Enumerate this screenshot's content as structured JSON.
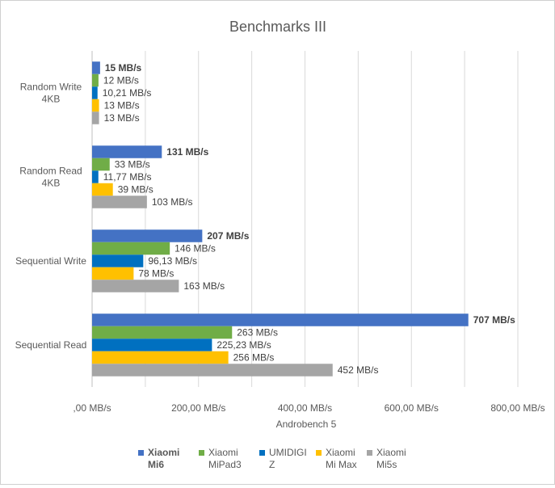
{
  "chart_data": {
    "type": "bar",
    "orientation": "horizontal",
    "title": "Benchmarks III",
    "xlabel": "Androbench 5",
    "ylabel": "",
    "xlim": [
      0,
      800
    ],
    "x_ticks": [
      0,
      200,
      400,
      600,
      800
    ],
    "x_tick_labels": [
      ",00 MB/s",
      "200,00 MB/s",
      "400,00 MB/s",
      "600,00 MB/s",
      "800,00 MB/s"
    ],
    "grid": true,
    "legend_position": "bottom",
    "categories": [
      [
        "Random Write",
        "4KB"
      ],
      [
        "Random Read",
        "4KB"
      ],
      [
        "Sequential Write"
      ],
      [
        "Sequential Read"
      ]
    ],
    "series": [
      {
        "name": [
          "Xiaomi",
          "Mi6"
        ],
        "color": "#4472c4",
        "bold": true,
        "values": [
          15,
          131,
          207,
          707
        ],
        "labels": [
          "15  MB/s",
          "131  MB/s",
          "207 MB/s",
          "707 MB/s"
        ]
      },
      {
        "name": [
          "Xiaomi",
          "MiPad3"
        ],
        "color": "#70ad47",
        "bold": false,
        "values": [
          12,
          33,
          146,
          263
        ],
        "labels": [
          "12  MB/s",
          "33  MB/s",
          "146  MB/s",
          "263 MB/s"
        ]
      },
      {
        "name": [
          "UMIDIGI",
          "Z"
        ],
        "color": "#0070c0",
        "bold": false,
        "values": [
          10.21,
          11.77,
          96.13,
          225.23
        ],
        "labels": [
          "10,21 MB/s",
          "11,77 MB/s",
          "96,13 MB/s",
          "225,23 MB/s"
        ]
      },
      {
        "name": [
          "Xiaomi",
          "Mi Max"
        ],
        "color": "#ffc000",
        "bold": false,
        "values": [
          13,
          39,
          78,
          256
        ],
        "labels": [
          "13  MB/s",
          "39  MB/s",
          "78  MB/s",
          "256  MB/s"
        ]
      },
      {
        "name": [
          "Xiaomi",
          "Mi5s"
        ],
        "color": "#a5a5a5",
        "bold": false,
        "values": [
          13,
          103,
          163,
          452
        ],
        "labels": [
          "13  MB/s",
          "103  MB/s",
          "163  MB/s",
          "452  MB/s"
        ]
      }
    ]
  }
}
